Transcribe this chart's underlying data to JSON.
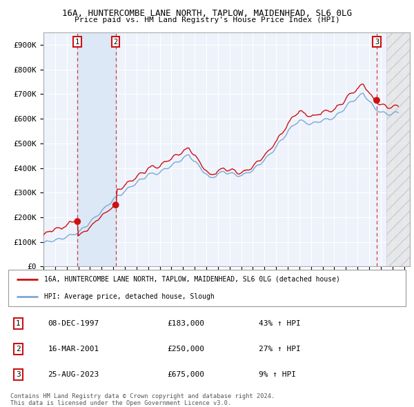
{
  "title1": "16A, HUNTERCOMBE LANE NORTH, TAPLOW, MAIDENHEAD, SL6 0LG",
  "title2": "Price paid vs. HM Land Registry's House Price Index (HPI)",
  "ylim": [
    0,
    950000
  ],
  "yticks": [
    0,
    100000,
    200000,
    300000,
    400000,
    500000,
    600000,
    700000,
    800000,
    900000
  ],
  "ytick_labels": [
    "£0",
    "£100K",
    "£200K",
    "£300K",
    "£400K",
    "£500K",
    "£600K",
    "£700K",
    "£800K",
    "£900K"
  ],
  "xlim_start": 1995.0,
  "xlim_end": 2026.5,
  "hpi_color": "#7aa8d4",
  "price_color": "#cc1111",
  "background_color": "#ffffff",
  "plot_bg_color": "#eef2fb",
  "grid_color": "#ffffff",
  "shade_color": "#dce8f5",
  "transactions": [
    {
      "label": "1",
      "date": 1997.92,
      "price": 183000
    },
    {
      "label": "2",
      "date": 2001.21,
      "price": 250000
    },
    {
      "label": "3",
      "date": 2023.65,
      "price": 675000
    }
  ],
  "legend_line1": "16A, HUNTERCOMBE LANE NORTH, TAPLOW, MAIDENHEAD, SL6 0LG (detached house)",
  "legend_line2": "HPI: Average price, detached house, Slough",
  "table_data": [
    [
      "1",
      "08-DEC-1997",
      "£183,000",
      "43% ↑ HPI"
    ],
    [
      "2",
      "16-MAR-2001",
      "£250,000",
      "27% ↑ HPI"
    ],
    [
      "3",
      "25-AUG-2023",
      "£675,000",
      "9% ↑ HPI"
    ]
  ],
  "footer1": "Contains HM Land Registry data © Crown copyright and database right 2024.",
  "footer2": "This data is licensed under the Open Government Licence v3.0."
}
